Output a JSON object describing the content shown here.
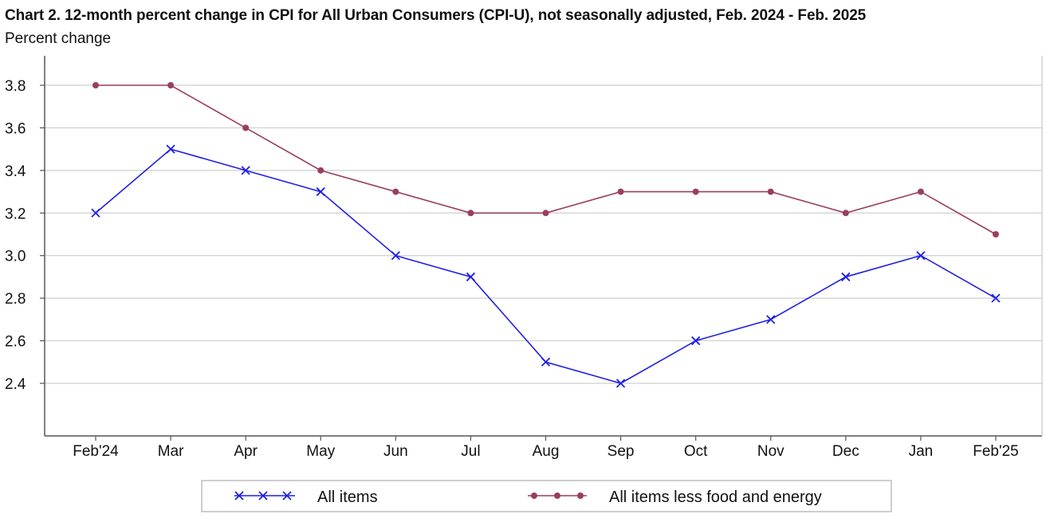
{
  "title": "Chart 2. 12-month percent change in CPI for All Urban Consumers (CPI-U), not seasonally adjusted, Feb. 2024 - Feb. 2025",
  "subtitle": "Percent change",
  "colors": {
    "all_items": "#1f1fe6",
    "core": "#9a3d62",
    "grid": "#cfcfcf",
    "axis": "#555555"
  },
  "chart_data": {
    "type": "line",
    "title": "Chart 2. 12-month percent change in CPI for All Urban Consumers (CPI-U), not seasonally adjusted, Feb. 2024 - Feb. 2025",
    "ylabel": "Percent change",
    "xlabel": "",
    "categories": [
      "Feb'24",
      "Mar",
      "Apr",
      "May",
      "Jun",
      "Jul",
      "Aug",
      "Sep",
      "Oct",
      "Nov",
      "Dec",
      "Jan",
      "Feb'25"
    ],
    "y_ticks": [
      2.4,
      2.6,
      2.8,
      3.0,
      3.2,
      3.4,
      3.6,
      3.8
    ],
    "ylim": [
      2.2,
      3.95
    ],
    "grid": true,
    "legend_position": "bottom",
    "series": [
      {
        "name": "All items",
        "marker": "x",
        "color": "#1f1fe6",
        "values": [
          3.2,
          3.5,
          3.4,
          3.3,
          3.0,
          2.9,
          2.5,
          2.4,
          2.6,
          2.7,
          2.9,
          3.0,
          2.8
        ]
      },
      {
        "name": "All items less food and energy",
        "marker": "dot",
        "color": "#9a3d62",
        "values": [
          3.8,
          3.8,
          3.6,
          3.4,
          3.3,
          3.2,
          3.2,
          3.3,
          3.3,
          3.3,
          3.2,
          3.3,
          3.1
        ]
      }
    ]
  }
}
